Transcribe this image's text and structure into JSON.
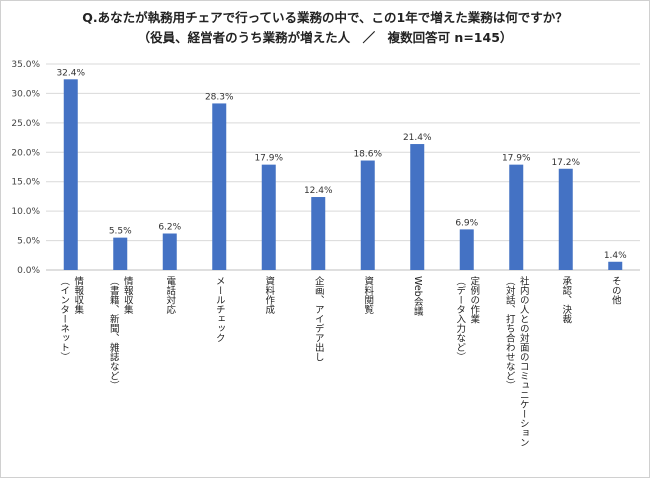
{
  "chart_data": {
    "type": "bar",
    "title": "Q.あなたが執務用チェアで行っている業務の中で、この1年で増えた業務は何ですか？",
    "subtitle": "（役員、経営者のうち業務が増えた人　／　複数回答可 n=145）",
    "categories": [
      [
        "情報収集",
        "（インターネット）"
      ],
      [
        "情報収集",
        "（書籍、新聞、雑誌など）"
      ],
      [
        "電話対応"
      ],
      [
        "メールチェック"
      ],
      [
        "資料作成"
      ],
      [
        "企画、アイデア出し"
      ],
      [
        "資料閲覧"
      ],
      [
        "Web会議"
      ],
      [
        "定例の作業",
        "（データ入力など）"
      ],
      [
        "社内の人との対面のコミュニケーション",
        "（対話、打ち合わせなど）"
      ],
      [
        "承認、決裁"
      ],
      [
        "その他"
      ]
    ],
    "values": [
      32.4,
      5.5,
      6.2,
      28.3,
      17.9,
      12.4,
      18.6,
      21.4,
      6.9,
      17.9,
      17.2,
      1.4
    ],
    "value_labels": [
      "32.4%",
      "5.5%",
      "6.2%",
      "28.3%",
      "17.9%",
      "12.4%",
      "18.6%",
      "21.4%",
      "6.9%",
      "17.9%",
      "17.2%",
      "1.4%"
    ],
    "y_ticks": [
      "0.0%",
      "5.0%",
      "10.0%",
      "15.0%",
      "20.0%",
      "25.0%",
      "30.0%",
      "35.0%"
    ],
    "ylim": [
      0,
      35
    ],
    "grid": true,
    "colors": {
      "bar": "#4472c4",
      "grid": "#d9d9d9"
    }
  }
}
